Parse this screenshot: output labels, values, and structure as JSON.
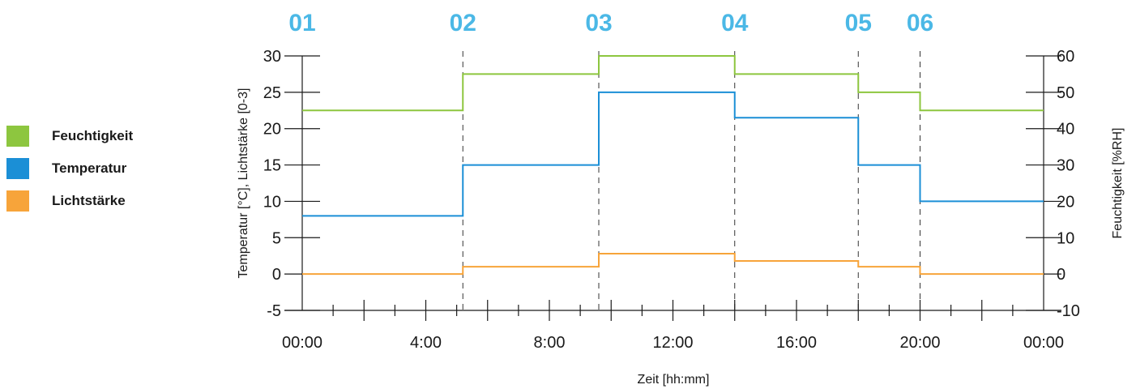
{
  "chart_data": {
    "type": "line",
    "step": "post",
    "xlabel": "Zeit [hh:mm]",
    "ylabel_left": "Temperatur [°C], Lichtstärke [0-3]",
    "ylabel_right": "Feuchtigkeit [%RH]",
    "x_ticks": [
      "00:00",
      "4:00",
      "8:00",
      "12:00",
      "16:00",
      "20:00",
      "00:00"
    ],
    "x_tick_hours": [
      0,
      4,
      8,
      12,
      16,
      20,
      24
    ],
    "xlim_hours": [
      0,
      24
    ],
    "ylim_left": [
      -5,
      30
    ],
    "y_ticks_left": [
      "30",
      "25",
      "20",
      "15",
      "10",
      "5",
      "0",
      "-5"
    ],
    "ylim_right": [
      -10,
      60
    ],
    "y_ticks_right": [
      "60",
      "50",
      "40",
      "30",
      "20",
      "10",
      "0",
      "-10"
    ],
    "phases": [
      {
        "label": "01",
        "start_hours": 0
      },
      {
        "label": "02",
        "start_hours": 5.2
      },
      {
        "label": "03",
        "start_hours": 9.6
      },
      {
        "label": "04",
        "start_hours": 14.0
      },
      {
        "label": "05",
        "start_hours": 18.0
      },
      {
        "label": "06",
        "start_hours": 20.0
      }
    ],
    "series": [
      {
        "name": "Feuchtigkeit",
        "color": "#8dc63f",
        "axis": "right",
        "x_hours": [
          0,
          5.2,
          9.6,
          14.0,
          18.0,
          20.0,
          24
        ],
        "values": [
          45,
          55,
          60,
          55,
          50,
          45,
          45
        ]
      },
      {
        "name": "Temperatur",
        "color": "#1b8fd6",
        "axis": "left",
        "x_hours": [
          0,
          5.2,
          9.6,
          14.0,
          18.0,
          20.0,
          24
        ],
        "values": [
          8,
          15,
          25,
          21.5,
          15,
          10,
          10
        ]
      },
      {
        "name": "Lichtstärke",
        "color": "#f7a43a",
        "axis": "left",
        "x_hours": [
          0,
          5.2,
          9.6,
          14.0,
          18.0,
          20.0,
          24
        ],
        "values": [
          0,
          1,
          2.8,
          1.8,
          1,
          0,
          0
        ]
      }
    ],
    "phase_label_color": "#4bb8e6",
    "grid": false,
    "legend_position": "left"
  }
}
